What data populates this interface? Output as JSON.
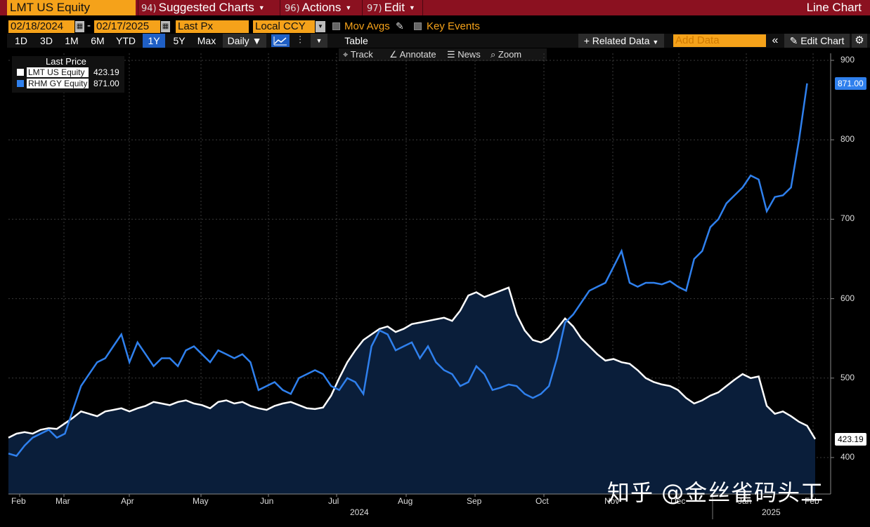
{
  "toolbar": {
    "ticker": "LMT US Equity",
    "menus": [
      {
        "num": "94)",
        "label": "Suggested Charts"
      },
      {
        "num": "96)",
        "label": "Actions"
      },
      {
        "num": "97)",
        "label": "Edit"
      }
    ],
    "chart_type": "Line Chart"
  },
  "settings": {
    "start_date": "02/18/2024",
    "date_sep": "-",
    "end_date": "02/17/2025",
    "field": "Last Px",
    "currency": "Local CCY",
    "mov_avgs": "Mov Avgs",
    "key_events": "Key Events"
  },
  "periods": [
    "1D",
    "3D",
    "1M",
    "6M",
    "YTD",
    "1Y",
    "5Y",
    "Max"
  ],
  "active_period": "1Y",
  "frequency": "Daily",
  "table_label": "Table",
  "related_data": "Related Data",
  "add_data_placeholder": "Add Data",
  "edit_chart": "Edit Chart",
  "tools": [
    "Track",
    "Annotate",
    "News",
    "Zoom"
  ],
  "legend": {
    "header": "Last Price",
    "items": [
      {
        "name": "LMT US Equity",
        "value": "423.19",
        "color": "#ffffff"
      },
      {
        "name": "RHM GY Equity",
        "value": "871.00",
        "color": "#2f80ed"
      }
    ]
  },
  "watermark": "知乎 @金丝雀码头工",
  "chart_data": {
    "type": "line",
    "title": "Last Price",
    "xlabel": "",
    "ylabel": "",
    "x_months": [
      "Feb",
      "Mar",
      "Apr",
      "May",
      "Jun",
      "Jul",
      "Aug",
      "Sep",
      "Oct",
      "Nov",
      "Dec",
      "Jan",
      "Feb"
    ],
    "x_years": [
      "2024",
      "2025"
    ],
    "ylim": [
      355,
      905
    ],
    "y_ticks": [
      "400",
      "500",
      "600",
      "700",
      "800",
      "900"
    ],
    "last_labels": [
      "423.19",
      "871.00"
    ],
    "series": [
      {
        "name": "LMT US Equity",
        "color": "#ffffff",
        "fill": "#0a1e3a",
        "points": [
          [
            0,
            425
          ],
          [
            2,
            430
          ],
          [
            4,
            432
          ],
          [
            6,
            430
          ],
          [
            8,
            435
          ],
          [
            10,
            437
          ],
          [
            12,
            436
          ],
          [
            14,
            443
          ],
          [
            16,
            450
          ],
          [
            18,
            458
          ],
          [
            20,
            455
          ],
          [
            22,
            452
          ],
          [
            24,
            458
          ],
          [
            26,
            460
          ],
          [
            28,
            462
          ],
          [
            30,
            458
          ],
          [
            32,
            462
          ],
          [
            34,
            465
          ],
          [
            36,
            470
          ],
          [
            38,
            468
          ],
          [
            40,
            466
          ],
          [
            42,
            470
          ],
          [
            44,
            472
          ],
          [
            46,
            468
          ],
          [
            48,
            466
          ],
          [
            50,
            462
          ],
          [
            52,
            470
          ],
          [
            54,
            472
          ],
          [
            56,
            468
          ],
          [
            58,
            470
          ],
          [
            60,
            465
          ],
          [
            62,
            462
          ],
          [
            64,
            460
          ],
          [
            66,
            465
          ],
          [
            68,
            468
          ],
          [
            70,
            470
          ],
          [
            72,
            466
          ],
          [
            74,
            462
          ],
          [
            76,
            461
          ],
          [
            78,
            463
          ],
          [
            80,
            478
          ],
          [
            82,
            500
          ],
          [
            84,
            520
          ],
          [
            86,
            535
          ],
          [
            88,
            548
          ],
          [
            90,
            555
          ],
          [
            92,
            562
          ],
          [
            94,
            565
          ],
          [
            96,
            558
          ],
          [
            98,
            562
          ],
          [
            100,
            568
          ],
          [
            102,
            570
          ],
          [
            104,
            572
          ],
          [
            106,
            574
          ],
          [
            108,
            576
          ],
          [
            110,
            572
          ],
          [
            112,
            585
          ],
          [
            114,
            604
          ],
          [
            116,
            608
          ],
          [
            118,
            602
          ],
          [
            120,
            606
          ],
          [
            122,
            610
          ],
          [
            124,
            614
          ],
          [
            126,
            580
          ],
          [
            128,
            560
          ],
          [
            130,
            548
          ],
          [
            132,
            545
          ],
          [
            134,
            550
          ],
          [
            136,
            562
          ],
          [
            138,
            575
          ],
          [
            140,
            565
          ],
          [
            142,
            550
          ],
          [
            144,
            540
          ],
          [
            146,
            530
          ],
          [
            148,
            522
          ],
          [
            150,
            524
          ],
          [
            152,
            520
          ],
          [
            154,
            518
          ],
          [
            156,
            510
          ],
          [
            158,
            500
          ],
          [
            160,
            495
          ],
          [
            162,
            492
          ],
          [
            164,
            490
          ],
          [
            166,
            485
          ],
          [
            168,
            475
          ],
          [
            170,
            468
          ],
          [
            172,
            472
          ],
          [
            174,
            478
          ],
          [
            176,
            482
          ],
          [
            178,
            490
          ],
          [
            180,
            498
          ],
          [
            182,
            505
          ],
          [
            184,
            500
          ],
          [
            186,
            502
          ],
          [
            188,
            465
          ],
          [
            190,
            455
          ],
          [
            192,
            458
          ],
          [
            194,
            452
          ],
          [
            196,
            445
          ],
          [
            198,
            440
          ],
          [
            200,
            423.19
          ]
        ]
      },
      {
        "name": "RHM GY Equity",
        "color": "#2f80ed",
        "points": [
          [
            0,
            405
          ],
          [
            2,
            402
          ],
          [
            4,
            415
          ],
          [
            6,
            425
          ],
          [
            8,
            430
          ],
          [
            10,
            435
          ],
          [
            12,
            425
          ],
          [
            14,
            430
          ],
          [
            16,
            460
          ],
          [
            18,
            490
          ],
          [
            20,
            505
          ],
          [
            22,
            520
          ],
          [
            24,
            525
          ],
          [
            26,
            540
          ],
          [
            28,
            555
          ],
          [
            30,
            520
          ],
          [
            32,
            545
          ],
          [
            34,
            530
          ],
          [
            36,
            515
          ],
          [
            38,
            525
          ],
          [
            40,
            525
          ],
          [
            42,
            515
          ],
          [
            44,
            535
          ],
          [
            46,
            540
          ],
          [
            48,
            530
          ],
          [
            50,
            520
          ],
          [
            52,
            535
          ],
          [
            54,
            530
          ],
          [
            56,
            525
          ],
          [
            58,
            530
          ],
          [
            60,
            520
          ],
          [
            62,
            485
          ],
          [
            64,
            490
          ],
          [
            66,
            495
          ],
          [
            68,
            485
          ],
          [
            70,
            480
          ],
          [
            72,
            500
          ],
          [
            74,
            505
          ],
          [
            76,
            510
          ],
          [
            78,
            505
          ],
          [
            80,
            490
          ],
          [
            82,
            485
          ],
          [
            84,
            500
          ],
          [
            86,
            495
          ],
          [
            88,
            480
          ],
          [
            90,
            540
          ],
          [
            92,
            560
          ],
          [
            94,
            555
          ],
          [
            96,
            535
          ],
          [
            98,
            540
          ],
          [
            100,
            545
          ],
          [
            102,
            525
          ],
          [
            104,
            540
          ],
          [
            106,
            520
          ],
          [
            108,
            510
          ],
          [
            110,
            505
          ],
          [
            112,
            490
          ],
          [
            114,
            495
          ],
          [
            116,
            515
          ],
          [
            118,
            505
          ],
          [
            120,
            485
          ],
          [
            122,
            488
          ],
          [
            124,
            492
          ],
          [
            126,
            490
          ],
          [
            128,
            480
          ],
          [
            130,
            475
          ],
          [
            132,
            480
          ],
          [
            134,
            490
          ],
          [
            136,
            525
          ],
          [
            138,
            570
          ],
          [
            140,
            580
          ],
          [
            142,
            595
          ],
          [
            144,
            610
          ],
          [
            146,
            615
          ],
          [
            148,
            620
          ],
          [
            150,
            640
          ],
          [
            152,
            660
          ],
          [
            154,
            620
          ],
          [
            156,
            615
          ],
          [
            158,
            620
          ],
          [
            160,
            620
          ],
          [
            162,
            618
          ],
          [
            164,
            622
          ],
          [
            166,
            615
          ],
          [
            168,
            610
          ],
          [
            170,
            650
          ],
          [
            172,
            660
          ],
          [
            174,
            690
          ],
          [
            176,
            700
          ],
          [
            178,
            720
          ],
          [
            180,
            730
          ],
          [
            182,
            740
          ],
          [
            184,
            755
          ],
          [
            186,
            750
          ],
          [
            188,
            710
          ],
          [
            190,
            728
          ],
          [
            192,
            730
          ],
          [
            194,
            740
          ],
          [
            196,
            800
          ],
          [
            198,
            871
          ]
        ]
      }
    ]
  },
  "colors": {
    "menu_bar": "#8b1120",
    "accent_orange": "#f5a21a",
    "active_blue": "#1f5fc5",
    "plot_bg": "#000000",
    "grid": "#3c3c3c"
  }
}
